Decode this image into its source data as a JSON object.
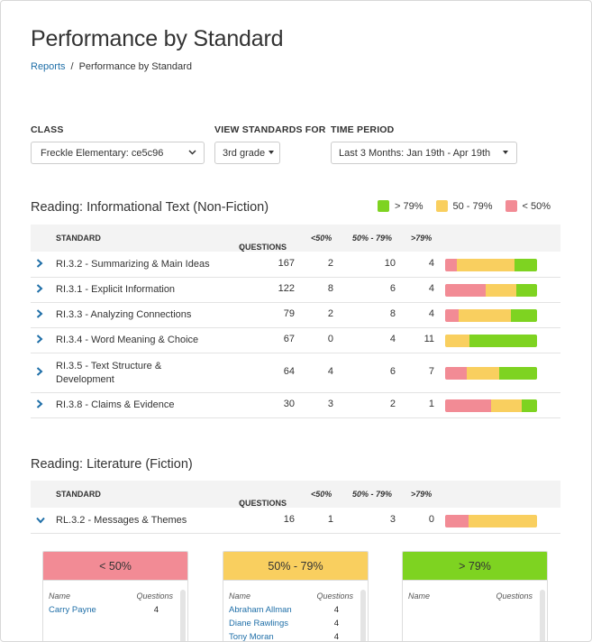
{
  "page": {
    "title": "Performance by Standard"
  },
  "breadcrumb": {
    "parent": "Reports",
    "separator": "/",
    "current": "Performance by Standard"
  },
  "filters": {
    "class_label": "CLASS",
    "class_value": "Freckle Elementary: ce5c96",
    "standards_label": "VIEW STANDARDS FOR",
    "standards_value": "3rd grade",
    "time_label": "TIME PERIOD",
    "time_value": "Last 3 Months: Jan 19th - Apr 19th"
  },
  "legend": {
    "high": {
      "label": "> 79%",
      "color": "#7ed321"
    },
    "mid": {
      "label": "50 - 79%",
      "color": "#f9cf5f"
    },
    "low": {
      "label": "< 50%",
      "color": "#f28b95"
    }
  },
  "columns": {
    "standard": "STANDARD",
    "questions": "QUESTIONS",
    "low": "<50%",
    "mid": "50% - 79%",
    "high": ">79%"
  },
  "section1": {
    "title": "Reading: Informational Text (Non-Fiction)",
    "rows": [
      {
        "standard": "RI.3.2 - Summarizing & Main Ideas",
        "questions": "167",
        "low": "2",
        "mid": "10",
        "high": "4"
      },
      {
        "standard": "RI.3.1 - Explicit Information",
        "questions": "122",
        "low": "8",
        "mid": "6",
        "high": "4"
      },
      {
        "standard": "RI.3.3 - Analyzing Connections",
        "questions": "79",
        "low": "2",
        "mid": "8",
        "high": "4"
      },
      {
        "standard": "RI.3.4 - Word Meaning & Choice",
        "questions": "67",
        "low": "0",
        "mid": "4",
        "high": "11"
      },
      {
        "standard": "RI.3.5 - Text Structure & Development",
        "questions": "64",
        "low": "4",
        "mid": "6",
        "high": "7"
      },
      {
        "standard": "RI.3.8 - Claims & Evidence",
        "questions": "30",
        "low": "3",
        "mid": "2",
        "high": "1"
      }
    ]
  },
  "section2": {
    "title": "Reading: Literature (Fiction)",
    "rows": [
      {
        "standard": "RL.3.2 - Messages & Themes",
        "questions": "16",
        "low": "1",
        "mid": "3",
        "high": "0"
      }
    ]
  },
  "cards": {
    "name_col": "Name",
    "questions_col": "Questions",
    "low": {
      "title": "< 50%",
      "students": [
        {
          "name": "Carry Payne",
          "questions": "4"
        }
      ]
    },
    "mid": {
      "title": "50% - 79%",
      "students": [
        {
          "name": "Abraham Allman",
          "questions": "4"
        },
        {
          "name": "Diane Rawlings",
          "questions": "4"
        },
        {
          "name": "Tony Moran",
          "questions": "4"
        }
      ]
    },
    "high": {
      "title": "> 79%",
      "students": []
    }
  }
}
